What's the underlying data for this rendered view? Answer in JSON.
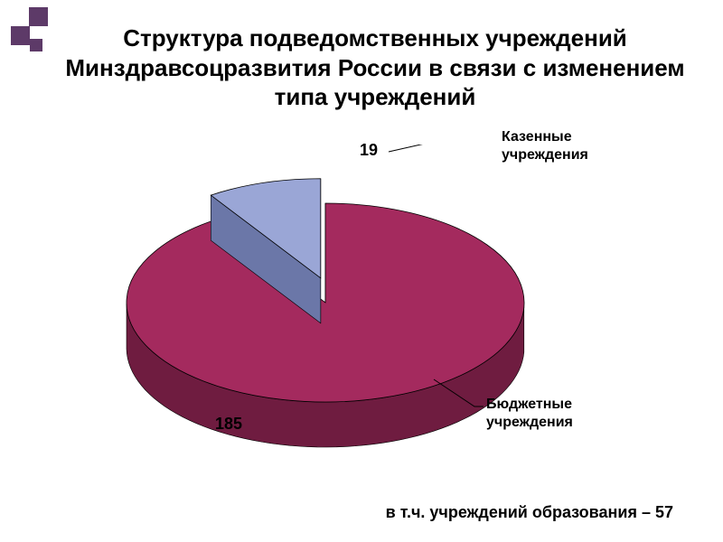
{
  "title": "Структура подведомственных учреждений Минздравсоцразвития России в связи с изменением типа учреждений",
  "title_fontsize": 26,
  "chart": {
    "type": "pie",
    "three_d": true,
    "exploded_slice_index": 1,
    "slices": [
      {
        "label": "Бюджетные учреждения",
        "value": 185,
        "color_top": "#a42a5e",
        "color_side": "#6f1c40"
      },
      {
        "label": "Казенные учреждения",
        "value": 19,
        "color_top": "#9aa6d6",
        "color_side": "#6b77a8"
      }
    ],
    "background_color": "#ffffff",
    "bullet_color": "#5d3a68",
    "value_fontsize": 18,
    "category_fontsize": 16
  },
  "footnote": "в т.ч. учреждений образования – 57",
  "footnote_fontsize": 18,
  "labels": {
    "slice_small_value": "19",
    "slice_small_name": "Казенные учреждения",
    "slice_big_value": "185",
    "slice_big_name": "Бюджетные учреждения"
  }
}
